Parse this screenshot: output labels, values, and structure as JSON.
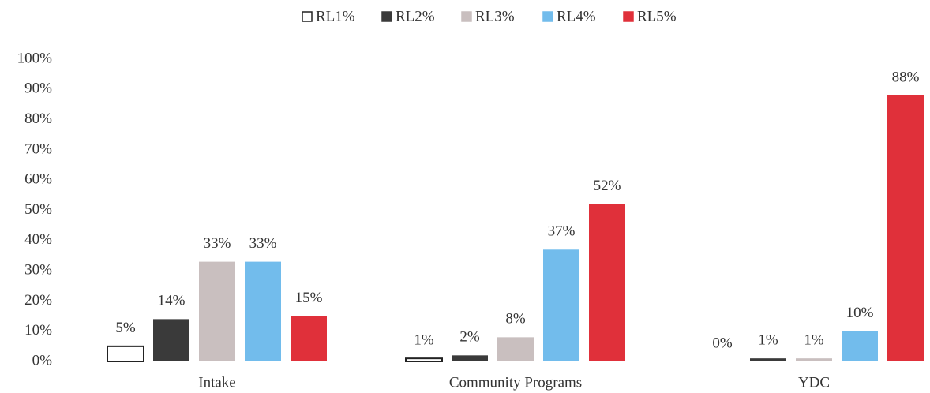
{
  "chart_data": {
    "type": "bar",
    "categories": [
      "Intake",
      "Community Programs",
      "YDC"
    ],
    "series": [
      {
        "name": "RL1%",
        "color": "#ffffff",
        "values": [
          5,
          1,
          0
        ],
        "value_labels": [
          "5%",
          "1%",
          "0%"
        ]
      },
      {
        "name": "RL2%",
        "color": "#3a3a3a",
        "values": [
          14,
          2,
          1
        ],
        "value_labels": [
          "14%",
          "2%",
          "1%"
        ]
      },
      {
        "name": "RL3%",
        "color": "#c9bfbf",
        "values": [
          33,
          8,
          1
        ],
        "value_labels": [
          "33%",
          "8%",
          "1%"
        ]
      },
      {
        "name": "RL4%",
        "color": "#72bcec",
        "values": [
          33,
          37,
          10
        ],
        "value_labels": [
          "33%",
          "37%",
          "10%"
        ]
      },
      {
        "name": "RL5%",
        "color": "#e0303a",
        "values": [
          15,
          52,
          88
        ],
        "value_labels": [
          "15%",
          "52%",
          "88%"
        ]
      }
    ],
    "ylim": [
      0,
      100
    ],
    "yticks": [
      {
        "value": 0,
        "label": "0%"
      },
      {
        "value": 10,
        "label": "10%"
      },
      {
        "value": 20,
        "label": "20%"
      },
      {
        "value": 30,
        "label": "30%"
      },
      {
        "value": 40,
        "label": "40%"
      },
      {
        "value": 50,
        "label": "50%"
      },
      {
        "value": 60,
        "label": "60%"
      },
      {
        "value": 70,
        "label": "70%"
      },
      {
        "value": 80,
        "label": "80%"
      },
      {
        "value": 90,
        "label": "90%"
      },
      {
        "value": 100,
        "label": "100%"
      }
    ],
    "legend": "top",
    "grid": false
  }
}
